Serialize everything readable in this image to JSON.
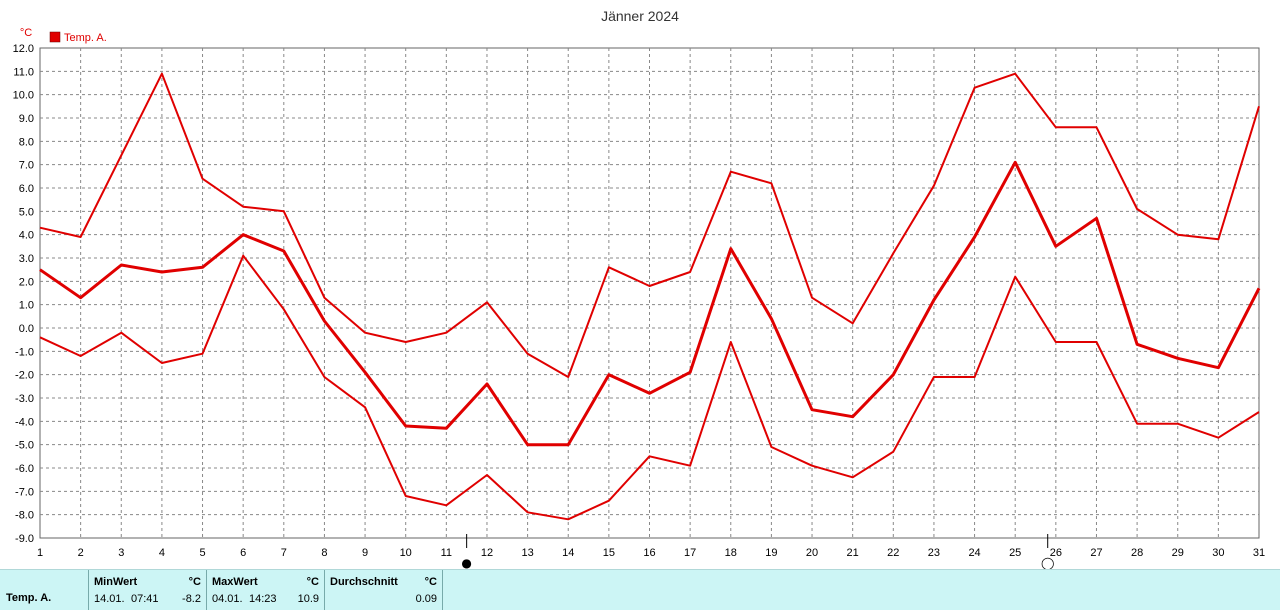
{
  "chart_data": {
    "type": "line",
    "title": "Jänner 2024",
    "ylabel": "°C",
    "ylim": [
      -9,
      12
    ],
    "ytick_step": 1,
    "grid": true,
    "legend_position": "top-left",
    "x": [
      1,
      2,
      3,
      4,
      5,
      6,
      7,
      8,
      9,
      10,
      11,
      12,
      13,
      14,
      15,
      16,
      17,
      18,
      19,
      20,
      21,
      22,
      23,
      24,
      25,
      26,
      27,
      28,
      29,
      30,
      31
    ],
    "series": [
      {
        "name": "Temp. A.",
        "role": "max",
        "color": "#e00000",
        "values": [
          4.3,
          3.9,
          7.4,
          10.9,
          6.4,
          5.2,
          5.0,
          1.3,
          -0.2,
          -0.6,
          -0.2,
          1.1,
          -1.1,
          -2.1,
          2.6,
          1.8,
          2.4,
          6.7,
          6.2,
          1.3,
          0.2,
          3.2,
          6.1,
          10.3,
          10.9,
          8.6,
          8.6,
          5.1,
          4.0,
          3.8,
          9.5
        ]
      },
      {
        "name": "Temp. A.",
        "role": "mean",
        "color": "#e00000",
        "values": [
          2.5,
          1.3,
          2.7,
          2.4,
          2.6,
          4.0,
          3.3,
          0.3,
          -1.9,
          -4.2,
          -4.3,
          -2.4,
          -5.0,
          -5.0,
          -2.0,
          -2.8,
          -1.9,
          3.4,
          0.4,
          -3.5,
          -3.8,
          -2.0,
          1.2,
          3.9,
          7.1,
          3.5,
          4.7,
          -0.7,
          -1.3,
          -1.7,
          1.7
        ]
      },
      {
        "name": "Temp. A.",
        "role": "min",
        "color": "#e00000",
        "values": [
          -0.4,
          -1.2,
          -0.2,
          -1.5,
          -1.1,
          3.1,
          0.8,
          -2.1,
          -3.4,
          -7.2,
          -7.6,
          -6.3,
          -7.9,
          -8.2,
          -7.4,
          -5.5,
          -5.9,
          -0.6,
          -5.1,
          -5.9,
          -6.4,
          -5.3,
          -2.1,
          -2.1,
          2.2,
          -0.6,
          -0.6,
          -4.1,
          -4.1,
          -4.7,
          -3.6
        ]
      }
    ],
    "legend": [
      {
        "label": "Temp. A.",
        "color": "#e00000"
      }
    ],
    "markers": [
      {
        "x": 11.5,
        "symbol": "●"
      },
      {
        "x": 25.8,
        "symbol": "◯"
      }
    ]
  },
  "stats": {
    "row_label": "Temp. A.",
    "min_header": "MinWert",
    "min_unit": "°C",
    "min_date": "14.01.",
    "min_time": "07:41",
    "min_value": "-8.2",
    "max_header": "MaxWert",
    "max_unit": "°C",
    "max_date": "04.01.",
    "max_time": "14:23",
    "max_value": "10.9",
    "avg_header": "Durchschnitt",
    "avg_unit": "°C",
    "avg_value": "0.09"
  }
}
